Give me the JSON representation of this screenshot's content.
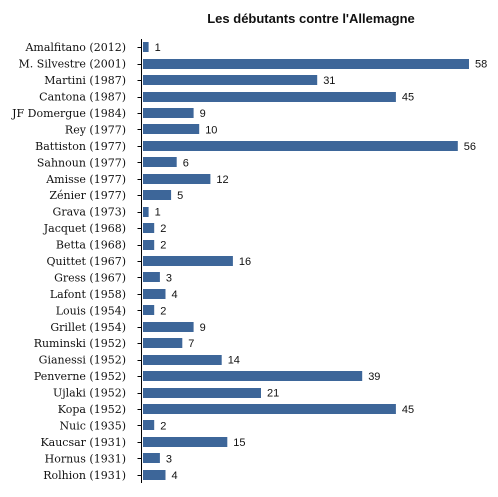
{
  "chart_data": {
    "type": "bar",
    "orientation": "horizontal",
    "title": "Les débutants contre l'Allemagne",
    "xlabel": "",
    "ylabel": "",
    "xlim": [
      0,
      58
    ],
    "grid": false,
    "legend": "none",
    "bar_color": "#3d6699",
    "categories": [
      "Amalfitano (2012)",
      "M. Silvestre (2001)",
      "Martini (1987)",
      "Cantona (1987)",
      "JF Domergue (1984)",
      "Rey (1977)",
      "Battiston (1977)",
      "Sahnoun (1977)",
      "Amisse (1977)",
      "Zénier (1977)",
      "Grava (1973)",
      "Jacquet (1968)",
      "Betta (1968)",
      "Quittet (1967)",
      "Gress (1967)",
      "Lafont (1958)",
      "Louis (1954)",
      "Grillet (1954)",
      "Ruminski (1952)",
      "Gianessi (1952)",
      "Penverne (1952)",
      "Ujlaki (1952)",
      "Kopa (1952)",
      "Nuic (1935)",
      "Kaucsar (1931)",
      "Hornus (1931)",
      "Rolhion (1931)"
    ],
    "values": [
      1,
      58,
      31,
      45,
      9,
      10,
      56,
      6,
      12,
      5,
      1,
      2,
      2,
      16,
      3,
      4,
      2,
      9,
      7,
      14,
      39,
      21,
      45,
      2,
      15,
      3,
      4
    ]
  }
}
